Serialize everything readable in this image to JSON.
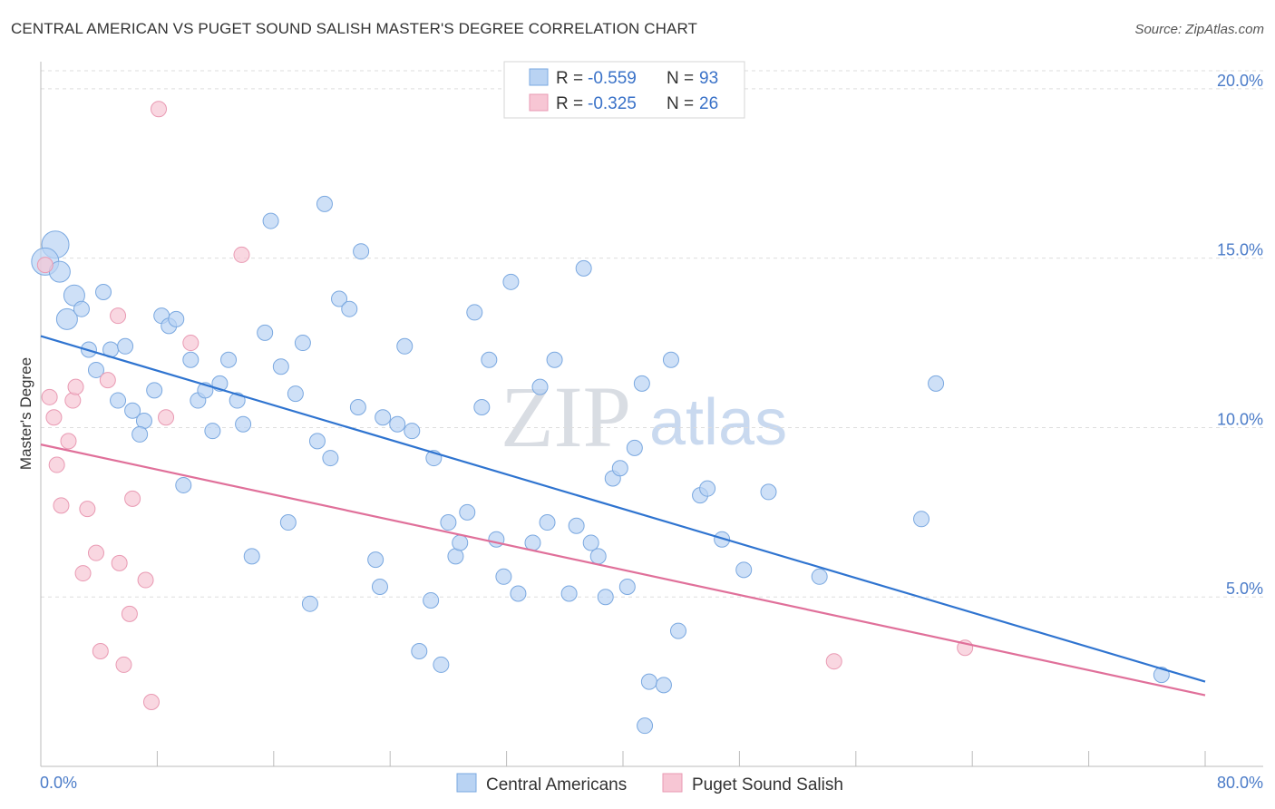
{
  "header": {
    "title": "CENTRAL AMERICAN VS PUGET SOUND SALISH MASTER'S DEGREE CORRELATION CHART",
    "source": "Source: ZipAtlas.com"
  },
  "watermark": {
    "zip": "ZIP",
    "atlas": "atlas"
  },
  "colors": {
    "blue_fill": "#b9d3f3",
    "blue_stroke": "#7aa8e0",
    "blue_line": "#2f74d0",
    "pink_fill": "#f7c6d4",
    "pink_stroke": "#e99ab3",
    "pink_line": "#e0709a",
    "tick_text": "#4a7bc8",
    "grid": "#dddddd"
  },
  "legend": {
    "rows": [
      {
        "r_label": "R = ",
        "r_value": "-0.559",
        "n_label": "N = ",
        "n_value": "93"
      },
      {
        "r_label": "R = ",
        "r_value": "-0.325",
        "n_label": "N = ",
        "n_value": "26"
      }
    ]
  },
  "bottom_legend": [
    "Central Americans",
    "Puget Sound Salish"
  ],
  "chart_data": {
    "type": "scatter",
    "title": "CENTRAL AMERICAN VS PUGET SOUND SALISH MASTER'S DEGREE CORRELATION CHART",
    "xlabel": "",
    "ylabel": "Master's Degree",
    "xlim": [
      0,
      80
    ],
    "ylim": [
      0,
      20.8
    ],
    "x_tick_labels": [
      "0.0%",
      "80.0%"
    ],
    "y_ticks": [
      5,
      10,
      15,
      20
    ],
    "y_tick_labels": [
      "5.0%",
      "10.0%",
      "15.0%",
      "20.0%"
    ],
    "grid": true,
    "series": [
      {
        "name": "Central Americans",
        "R": -0.559,
        "N": 93,
        "trend": {
          "x": [
            0,
            80
          ],
          "y": [
            12.7,
            2.5
          ]
        },
        "points": [
          [
            1.0,
            15.4,
            3
          ],
          [
            0.3,
            14.9,
            3
          ],
          [
            1.3,
            14.6,
            2
          ],
          [
            2.3,
            13.9,
            2
          ],
          [
            1.8,
            13.2,
            2
          ],
          [
            2.8,
            13.5,
            1
          ],
          [
            4.3,
            14.0,
            1
          ],
          [
            3.3,
            12.3,
            1
          ],
          [
            4.8,
            12.3,
            1
          ],
          [
            5.8,
            12.4,
            1
          ],
          [
            3.8,
            11.7,
            1
          ],
          [
            5.3,
            10.8,
            1
          ],
          [
            6.3,
            10.5,
            1
          ],
          [
            7.1,
            10.2,
            1
          ],
          [
            6.8,
            9.8,
            1
          ],
          [
            7.8,
            11.1,
            1
          ],
          [
            8.3,
            13.3,
            1
          ],
          [
            8.8,
            13.0,
            1
          ],
          [
            9.3,
            13.2,
            1
          ],
          [
            10.3,
            12.0,
            1
          ],
          [
            10.8,
            10.8,
            1
          ],
          [
            11.3,
            11.1,
            1
          ],
          [
            11.8,
            9.9,
            1
          ],
          [
            12.3,
            11.3,
            1
          ],
          [
            12.9,
            12.0,
            1
          ],
          [
            13.5,
            10.8,
            1
          ],
          [
            13.9,
            10.1,
            1
          ],
          [
            9.8,
            8.3,
            1
          ],
          [
            15.4,
            12.8,
            1
          ],
          [
            15.8,
            16.1,
            1
          ],
          [
            16.5,
            11.8,
            1
          ],
          [
            17.5,
            11.0,
            1
          ],
          [
            18.0,
            12.5,
            1
          ],
          [
            19.0,
            9.6,
            1
          ],
          [
            19.5,
            16.6,
            1
          ],
          [
            19.9,
            9.1,
            1
          ],
          [
            20.5,
            13.8,
            1
          ],
          [
            21.2,
            13.5,
            1
          ],
          [
            21.8,
            10.6,
            1
          ],
          [
            22.0,
            15.2,
            1
          ],
          [
            23.0,
            6.1,
            1
          ],
          [
            23.3,
            5.3,
            1
          ],
          [
            23.5,
            10.3,
            1
          ],
          [
            24.5,
            10.1,
            1
          ],
          [
            25.0,
            12.4,
            1
          ],
          [
            25.5,
            9.9,
            1
          ],
          [
            26.0,
            3.4,
            1
          ],
          [
            27.0,
            9.1,
            1
          ],
          [
            27.5,
            3.0,
            1
          ],
          [
            28.0,
            7.2,
            1
          ],
          [
            28.5,
            6.2,
            1
          ],
          [
            28.8,
            6.6,
            1
          ],
          [
            29.3,
            7.5,
            1
          ],
          [
            29.8,
            13.4,
            1
          ],
          [
            30.3,
            10.6,
            1
          ],
          [
            30.8,
            12.0,
            1
          ],
          [
            31.3,
            6.7,
            1
          ],
          [
            31.8,
            5.6,
            1
          ],
          [
            32.3,
            14.3,
            1
          ],
          [
            32.8,
            5.1,
            1
          ],
          [
            33.8,
            6.6,
            1
          ],
          [
            34.3,
            11.2,
            1
          ],
          [
            34.8,
            7.2,
            1
          ],
          [
            35.3,
            12.0,
            1
          ],
          [
            36.3,
            5.1,
            1
          ],
          [
            36.8,
            7.1,
            1
          ],
          [
            37.3,
            14.7,
            1
          ],
          [
            37.8,
            6.6,
            1
          ],
          [
            38.3,
            6.2,
            1
          ],
          [
            38.8,
            5.0,
            1
          ],
          [
            39.3,
            8.5,
            1
          ],
          [
            39.8,
            8.8,
            1
          ],
          [
            40.3,
            5.3,
            1
          ],
          [
            40.8,
            9.4,
            1
          ],
          [
            41.3,
            11.3,
            1
          ],
          [
            41.8,
            2.5,
            1
          ],
          [
            42.8,
            2.4,
            1
          ],
          [
            43.3,
            12.0,
            1
          ],
          [
            43.8,
            4.0,
            1
          ],
          [
            45.3,
            8.0,
            1
          ],
          [
            45.8,
            8.2,
            1
          ],
          [
            46.8,
            6.7,
            1
          ],
          [
            48.3,
            5.8,
            1
          ],
          [
            50.0,
            8.1,
            1
          ],
          [
            53.5,
            5.6,
            1
          ],
          [
            60.5,
            7.3,
            1
          ],
          [
            61.5,
            11.3,
            1
          ],
          [
            77.0,
            2.7,
            1
          ],
          [
            17.0,
            7.2,
            1
          ],
          [
            18.5,
            4.8,
            1
          ],
          [
            14.5,
            6.2,
            1
          ],
          [
            41.5,
            1.2,
            1
          ],
          [
            26.8,
            4.9,
            1
          ]
        ]
      },
      {
        "name": "Puget Sound Salish",
        "R": -0.325,
        "N": 26,
        "trend": {
          "x": [
            0,
            80
          ],
          "y": [
            9.5,
            2.1
          ]
        },
        "points": [
          [
            0.3,
            14.8,
            1
          ],
          [
            0.6,
            10.9,
            1
          ],
          [
            0.9,
            10.3,
            1
          ],
          [
            1.1,
            8.9,
            1
          ],
          [
            1.4,
            7.7,
            1
          ],
          [
            1.9,
            9.6,
            1
          ],
          [
            2.2,
            10.8,
            1
          ],
          [
            2.4,
            11.2,
            1
          ],
          [
            2.9,
            5.7,
            1
          ],
          [
            3.2,
            7.6,
            1
          ],
          [
            3.8,
            6.3,
            1
          ],
          [
            4.1,
            3.4,
            1
          ],
          [
            4.6,
            11.4,
            1
          ],
          [
            5.3,
            13.3,
            1
          ],
          [
            5.4,
            6.0,
            1
          ],
          [
            5.7,
            3.0,
            1
          ],
          [
            6.1,
            4.5,
            1
          ],
          [
            6.3,
            7.9,
            1
          ],
          [
            7.2,
            5.5,
            1
          ],
          [
            7.6,
            1.9,
            1
          ],
          [
            8.1,
            19.4,
            1
          ],
          [
            8.6,
            10.3,
            1
          ],
          [
            10.3,
            12.5,
            1
          ],
          [
            13.8,
            15.1,
            1
          ],
          [
            54.5,
            3.1,
            1
          ],
          [
            63.5,
            3.5,
            1
          ]
        ]
      }
    ]
  }
}
